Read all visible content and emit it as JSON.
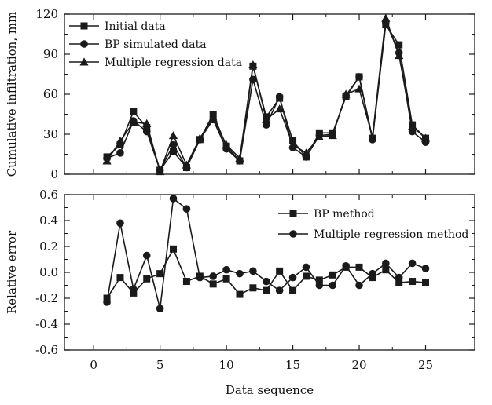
{
  "chart_data": {
    "type": "line",
    "xlabel": "Data sequence",
    "x_ticks": [
      0,
      5,
      10,
      15,
      20,
      25
    ],
    "xlim": [
      -2.2,
      28.7
    ],
    "x": [
      1,
      2,
      3,
      4,
      5,
      6,
      7,
      8,
      9,
      10,
      11,
      12,
      13,
      14,
      15,
      16,
      17,
      18,
      19,
      20,
      21,
      22,
      23,
      24,
      25
    ],
    "panels": [
      {
        "ylabel": "Cumulative infiltration, mm",
        "ylim": [
          0,
          120
        ],
        "y_ticks": [
          0,
          30,
          60,
          90,
          120
        ],
        "y_tick_labels": [
          "0",
          "30",
          "60",
          "90",
          "120"
        ],
        "legend_position": "top-left",
        "series": [
          {
            "name": "Initial data",
            "marker": "square",
            "values": [
              13,
              22,
              47,
              35,
              3,
              17,
              5,
              26,
              45,
              21,
              10,
              81,
              43,
              57,
              25,
              13,
              31,
              31,
              58,
              73,
              27,
              112,
              97,
              37,
              27
            ]
          },
          {
            "name": "BP simulated data",
            "marker": "circle",
            "values": [
              12,
              16,
              40,
              32,
              3,
              22,
              5,
              26,
              41,
              19,
              10,
              71,
              37,
              58,
              20,
              13,
              29,
              30,
              59,
              73,
              26,
              114,
              91,
              32,
              24
            ]
          },
          {
            "name": "Multiple regression data",
            "marker": "triangle",
            "values": [
              10,
              25,
              39,
              38,
              2,
              29,
              7,
              27,
              42,
              22,
              12,
              82,
              41,
              49,
              22,
              16,
              28,
              29,
              60,
              64,
              28,
              117,
              89,
              36,
              27
            ]
          }
        ]
      },
      {
        "ylabel": "Relative error",
        "ylim": [
          -0.6,
          0.6
        ],
        "y_ticks": [
          -0.6,
          -0.4,
          -0.2,
          0.0,
          0.2,
          0.4,
          0.6
        ],
        "y_tick_labels": [
          "-0.6",
          "-0.4",
          "-0.2",
          "0.0",
          "0.2",
          "0.4",
          "0.6"
        ],
        "legend_position": "top-right",
        "series": [
          {
            "name": "BP method",
            "marker": "square",
            "values": [
              -0.2,
              -0.04,
              -0.16,
              -0.05,
              -0.01,
              0.18,
              -0.07,
              -0.03,
              -0.09,
              -0.05,
              -0.17,
              -0.12,
              -0.14,
              0.01,
              -0.14,
              -0.03,
              -0.06,
              -0.02,
              0.04,
              0.04,
              -0.04,
              0.02,
              -0.08,
              -0.07,
              -0.08
            ]
          },
          {
            "name": "Multiple regression method",
            "marker": "circle",
            "values": [
              -0.23,
              0.38,
              -0.13,
              0.13,
              -0.28,
              0.57,
              0.49,
              -0.04,
              -0.03,
              0.02,
              -0.01,
              0.01,
              -0.07,
              -0.14,
              -0.04,
              0.04,
              -0.1,
              -0.1,
              0.05,
              -0.1,
              -0.01,
              0.07,
              -0.04,
              0.07,
              0.03
            ]
          }
        ]
      }
    ]
  }
}
